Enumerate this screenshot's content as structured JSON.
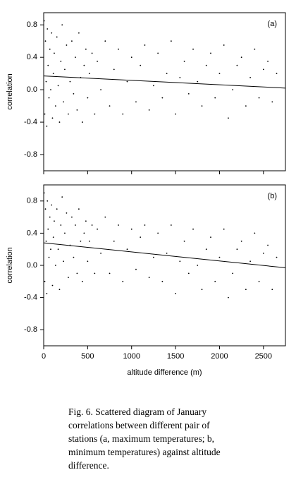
{
  "chart_data": [
    {
      "type": "scatter",
      "label": "(a)",
      "ylabel": "correlation",
      "xlim": [
        0,
        2750
      ],
      "ylim": [
        -1,
        0.95
      ],
      "xticks": [
        0,
        500,
        1000,
        1500,
        2000,
        2500
      ],
      "show_xtick_labels": false,
      "yticks": [
        -0.8,
        -0.4,
        {
          "value": 0,
          "label": "0.0"
        },
        0.4,
        0.8
      ],
      "color": "#000000",
      "x": [
        5,
        12,
        20,
        28,
        35,
        42,
        50,
        60,
        70,
        80,
        90,
        100,
        110,
        120,
        135,
        150,
        165,
        180,
        195,
        210,
        225,
        240,
        260,
        280,
        300,
        320,
        340,
        360,
        380,
        400,
        420,
        440,
        460,
        480,
        500,
        520,
        550,
        580,
        610,
        650,
        700,
        750,
        800,
        850,
        900,
        950,
        1000,
        1050,
        1100,
        1150,
        1200,
        1250,
        1300,
        1350,
        1400,
        1450,
        1500,
        1550,
        1600,
        1650,
        1700,
        1750,
        1800,
        1850,
        1900,
        1950,
        2000,
        2050,
        2100,
        2150,
        2200,
        2250,
        2300,
        2350,
        2400,
        2450,
        2500,
        2550,
        2600,
        2650
      ],
      "series": [
        {
          "values": [
            0.85,
            -0.3,
            0.6,
            0.1,
            -0.45,
            0.75,
            0.3,
            -0.1,
            0.5,
            0.0,
            0.7,
            -0.35,
            0.2,
            0.45,
            -0.2,
            0.65,
            0.05,
            -0.4,
            0.35,
            0.8,
            -0.15,
            0.25,
            0.55,
            -0.3,
            0.1,
            0.6,
            -0.05,
            0.4,
            -0.25,
            0.7,
            0.15,
            -0.4,
            0.3,
            0.5,
            -0.1,
            0.2,
            0.45,
            -0.3,
            0.35,
            0.0,
            0.6,
            -0.2,
            0.25,
            0.5,
            -0.3,
            0.1,
            0.4,
            -0.15,
            0.3,
            0.55,
            -0.25,
            0.05,
            0.45,
            -0.1,
            0.2,
            0.6,
            -0.3,
            0.15,
            0.35,
            -0.05,
            0.5,
            0.1,
            -0.2,
            0.3,
            0.45,
            -0.1,
            0.2,
            0.55,
            -0.35,
            0.0,
            0.3,
            0.4,
            -0.2,
            0.15,
            0.5,
            -0.1,
            0.25,
            0.35,
            -0.15,
            0.2
          ]
        }
      ],
      "trend": {
        "x": [
          0,
          2750
        ],
        "y": [
          0.17,
          0.02
        ]
      }
    },
    {
      "type": "scatter",
      "label": "(b)",
      "ylabel": "correlation",
      "xlabel": "altitude difference (m)",
      "xlim": [
        0,
        2750
      ],
      "ylim": [
        -1,
        1
      ],
      "xticks": [
        0,
        500,
        1000,
        1500,
        2000,
        2500
      ],
      "show_xtick_labels": true,
      "yticks": [
        -0.8,
        -0.4,
        {
          "value": 0,
          "label": "0.0"
        },
        0.4,
        0.8
      ],
      "color": "#000000",
      "x": [
        5,
        12,
        20,
        28,
        35,
        42,
        50,
        60,
        70,
        80,
        90,
        100,
        110,
        120,
        135,
        150,
        165,
        180,
        195,
        210,
        225,
        240,
        260,
        280,
        300,
        320,
        340,
        360,
        380,
        400,
        420,
        440,
        460,
        480,
        500,
        520,
        550,
        580,
        610,
        650,
        700,
        750,
        800,
        850,
        900,
        950,
        1000,
        1050,
        1100,
        1150,
        1200,
        1250,
        1300,
        1350,
        1400,
        1450,
        1500,
        1550,
        1600,
        1650,
        1700,
        1750,
        1800,
        1850,
        1900,
        1950,
        2000,
        2050,
        2100,
        2150,
        2200,
        2250,
        2300,
        2350,
        2400,
        2450,
        2500,
        2550,
        2600,
        2650
      ],
      "series": [
        {
          "values": [
            0.9,
            -0.2,
            0.7,
            0.3,
            -0.35,
            0.8,
            0.45,
            0.1,
            0.6,
            0.2,
            0.75,
            -0.25,
            0.35,
            0.55,
            0.0,
            0.7,
            0.2,
            -0.3,
            0.5,
            0.85,
            0.05,
            0.4,
            0.65,
            -0.15,
            0.25,
            0.6,
            0.1,
            0.5,
            -0.1,
            0.7,
            0.3,
            -0.2,
            0.4,
            0.55,
            0.05,
            0.3,
            0.5,
            -0.1,
            0.45,
            0.15,
            0.6,
            -0.1,
            0.3,
            0.5,
            -0.2,
            0.2,
            0.45,
            -0.05,
            0.35,
            0.5,
            -0.15,
            0.1,
            0.4,
            -0.2,
            0.15,
            0.5,
            -0.35,
            0.05,
            0.3,
            -0.1,
            0.45,
            0.0,
            -0.3,
            0.2,
            0.35,
            -0.2,
            0.1,
            0.45,
            -0.4,
            -0.1,
            0.2,
            0.3,
            -0.3,
            0.05,
            0.4,
            -0.2,
            0.15,
            0.25,
            -0.3,
            0.1
          ]
        }
      ],
      "trend": {
        "x": [
          0,
          2750
        ],
        "y": [
          0.28,
          -0.03
        ]
      }
    }
  ],
  "caption": [
    "Fig. 6. Scattered diagram of January",
    "correlations between different pair of",
    "stations (a, maximum temperatures; b,",
    "minimum temperatures) against altitude",
    "difference."
  ]
}
